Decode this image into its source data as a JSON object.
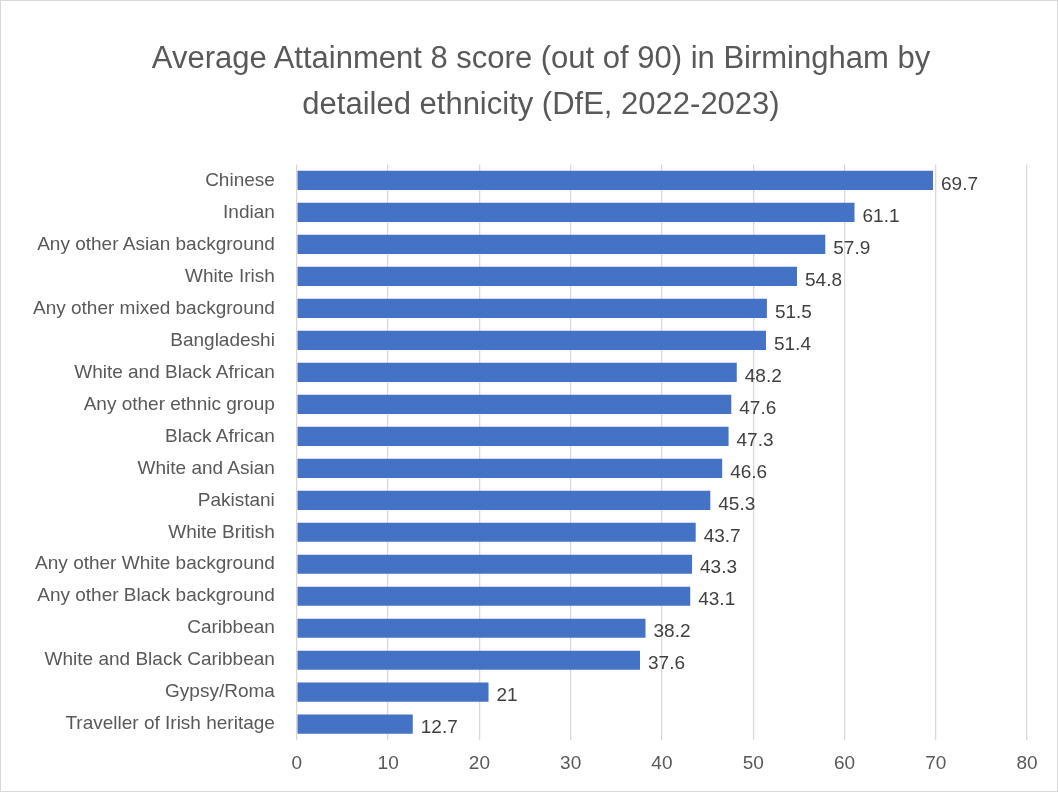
{
  "chart_data": {
    "type": "bar",
    "orientation": "horizontal",
    "title": "Average Attainment 8 score (out of 90) in Birmingham by detailed ethnicity (DfE, 2022-2023)",
    "categories": [
      "Chinese",
      "Indian",
      "Any other Asian background",
      "White Irish",
      "Any other mixed background",
      "Bangladeshi",
      "White and Black African",
      "Any other ethnic group",
      "Black African",
      "White and Asian",
      "Pakistani",
      "White British",
      "Any other White background",
      "Any other Black background",
      "Caribbean",
      "White and Black Caribbean",
      "Gypsy/Roma",
      "Traveller of Irish heritage"
    ],
    "values": [
      69.7,
      61.1,
      57.9,
      54.8,
      51.5,
      51.4,
      48.2,
      47.6,
      47.3,
      46.6,
      45.3,
      43.7,
      43.3,
      43.1,
      38.2,
      37.6,
      21,
      12.7
    ],
    "color": "#4472c4",
    "xlim": [
      0,
      80
    ],
    "xticks": [
      0,
      10,
      20,
      30,
      40,
      50,
      60,
      70,
      80
    ],
    "grid": "x",
    "data_labels": true,
    "legend": false
  }
}
